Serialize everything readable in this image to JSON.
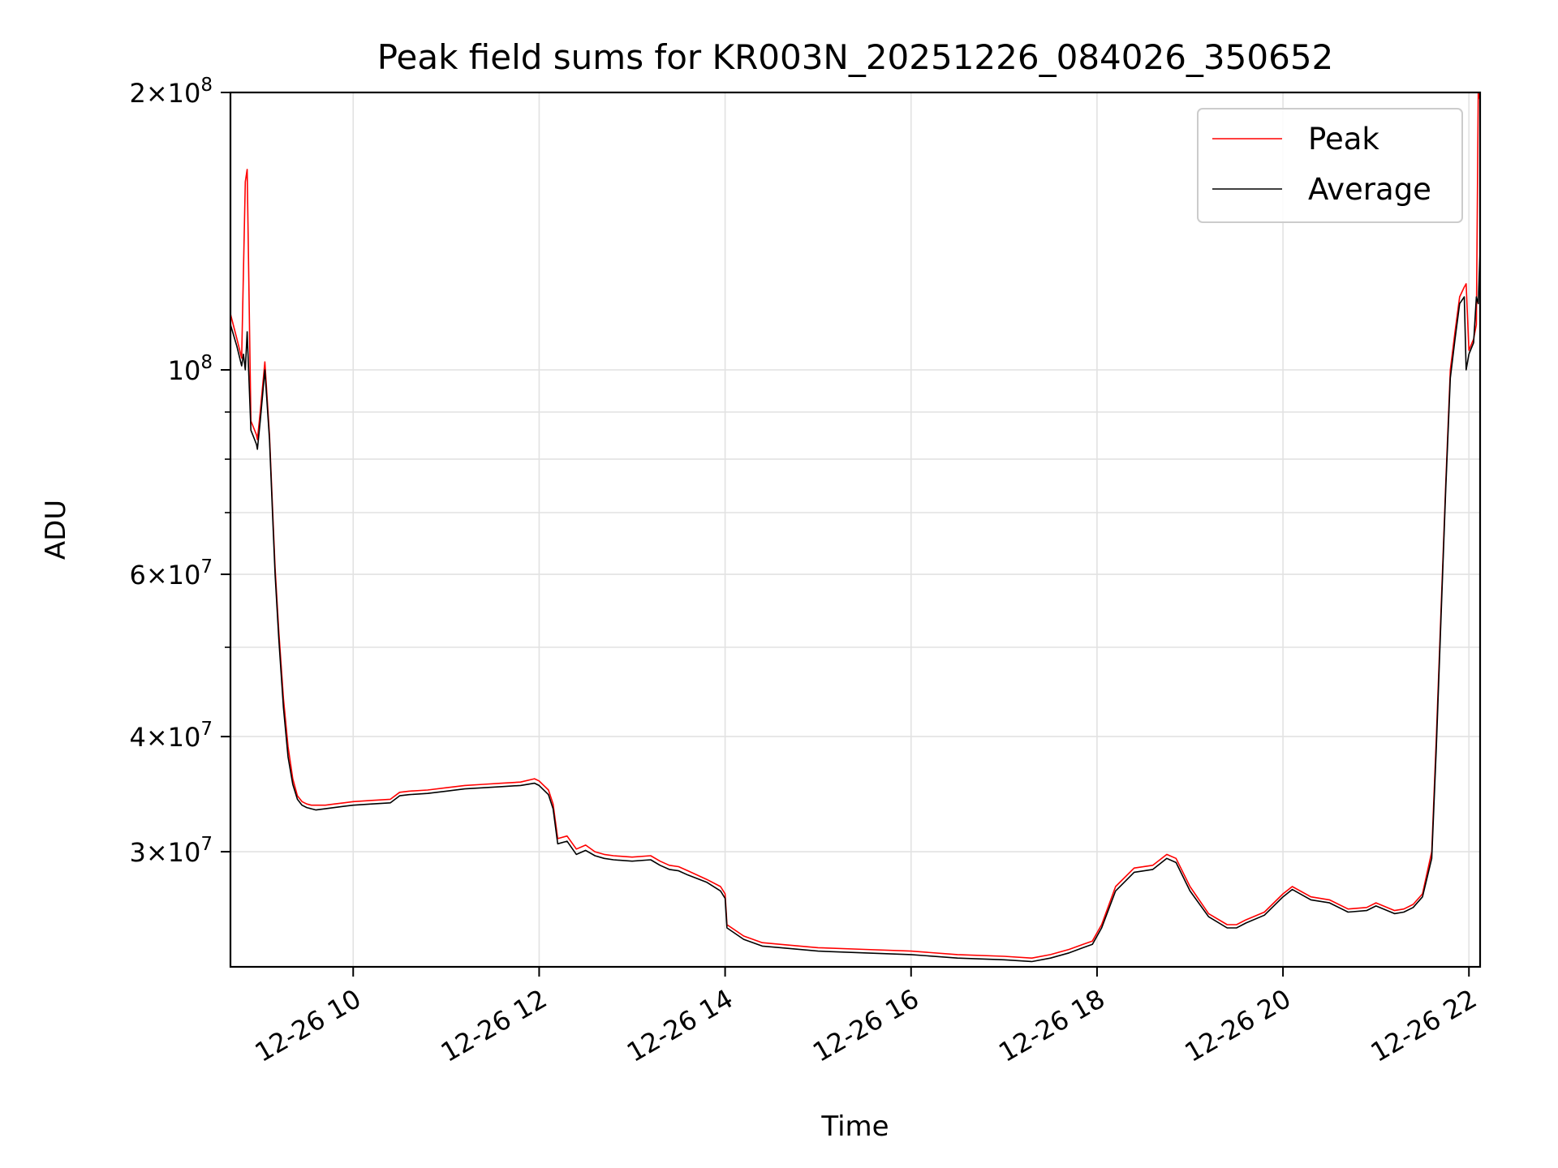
{
  "chart_data": {
    "type": "line",
    "title": "Peak field sums for KR003N_20251226_084026_350652",
    "xlabel": "Time",
    "ylabel": "ADU",
    "yscale": "log",
    "xlim": [
      8.68,
      22.12
    ],
    "ylim": [
      22500000,
      200000000
    ],
    "x_unit": "hours of 2025-12-26",
    "x_ticks": [
      {
        "value": 10,
        "label": "12-26 10"
      },
      {
        "value": 12,
        "label": "12-26 12"
      },
      {
        "value": 14,
        "label": "12-26 14"
      },
      {
        "value": 16,
        "label": "12-26 16"
      },
      {
        "value": 18,
        "label": "12-26 18"
      },
      {
        "value": 20,
        "label": "12-26 20"
      },
      {
        "value": 22,
        "label": "12-26 22"
      }
    ],
    "y_major_ticks": [
      {
        "value": 30000000,
        "base": "3",
        "exp": "7"
      },
      {
        "value": 40000000,
        "base": "4",
        "exp": "7"
      },
      {
        "value": 60000000,
        "base": "6",
        "exp": "7"
      },
      {
        "value": 100000000,
        "base": "",
        "exp": "8"
      },
      {
        "value": 200000000,
        "base": "2",
        "exp": "8"
      }
    ],
    "y_minor_ticks": [
      50000000,
      70000000,
      80000000,
      90000000
    ],
    "grid": true,
    "legend_position": "top-right",
    "series": [
      {
        "name": "Peak",
        "color": "#ff0000",
        "x": [
          8.68,
          8.75,
          8.8,
          8.84,
          8.86,
          8.9,
          8.92,
          8.94,
          8.96,
          8.97,
          9.0,
          9.05,
          9.1,
          9.12,
          9.14,
          9.16,
          9.2,
          9.25,
          9.3,
          9.35,
          9.4,
          9.45,
          9.5,
          9.55,
          9.6,
          9.7,
          9.8,
          9.9,
          10.0,
          10.2,
          10.4,
          10.5,
          10.6,
          10.8,
          11.0,
          11.2,
          11.4,
          11.6,
          11.8,
          11.95,
          12.0,
          12.1,
          12.15,
          12.2,
          12.3,
          12.4,
          12.5,
          12.6,
          12.7,
          12.8,
          13.0,
          13.2,
          13.3,
          13.4,
          13.5,
          13.6,
          13.8,
          13.95,
          14.0,
          14.02,
          14.2,
          14.4,
          14.6,
          15.0,
          15.5,
          16.0,
          16.5,
          17.0,
          17.3,
          17.5,
          17.7,
          17.85,
          17.95,
          18.05,
          18.2,
          18.4,
          18.6,
          18.75,
          18.85,
          19.0,
          19.2,
          19.4,
          19.5,
          19.6,
          19.8,
          20.0,
          20.1,
          20.3,
          20.5,
          20.7,
          20.9,
          21.0,
          21.2,
          21.3,
          21.4,
          21.5,
          21.6,
          21.65,
          21.7,
          21.75,
          21.8,
          21.85,
          21.9,
          21.95,
          21.97,
          22.0,
          22.05,
          22.08,
          22.1,
          22.12
        ],
        "values": [
          115000000,
          108000000,
          103000000,
          160000000,
          165000000,
          88000000,
          87000000,
          86000000,
          85000000,
          84000000,
          90000000,
          102000000,
          85000000,
          76000000,
          68000000,
          61000000,
          52000000,
          44000000,
          39000000,
          36000000,
          34500000,
          34000000,
          33800000,
          33700000,
          33700000,
          33700000,
          33800000,
          33900000,
          34000000,
          34100000,
          34200000,
          34800000,
          34900000,
          35000000,
          35200000,
          35400000,
          35500000,
          35600000,
          35700000,
          36000000,
          35800000,
          35000000,
          33800000,
          31000000,
          31200000,
          30200000,
          30500000,
          30000000,
          29800000,
          29700000,
          29600000,
          29700000,
          29300000,
          29000000,
          28900000,
          28600000,
          28000000,
          27500000,
          27000000,
          25000000,
          24300000,
          23900000,
          23800000,
          23600000,
          23500000,
          23400000,
          23200000,
          23100000,
          23000000,
          23200000,
          23500000,
          23800000,
          24000000,
          25000000,
          27500000,
          28800000,
          29000000,
          29800000,
          29500000,
          27500000,
          25700000,
          25000000,
          25000000,
          25300000,
          25800000,
          27000000,
          27500000,
          26800000,
          26600000,
          26000000,
          26100000,
          26400000,
          25900000,
          26000000,
          26300000,
          27000000,
          30000000,
          40000000,
          55000000,
          75000000,
          100000000,
          110000000,
          120000000,
          123000000,
          124000000,
          105000000,
          108000000,
          112000000,
          200000000,
          196000000
        ]
      },
      {
        "name": "Average",
        "color": "#000000",
        "x": [
          8.68,
          8.75,
          8.8,
          8.82,
          8.84,
          8.86,
          8.9,
          8.92,
          8.94,
          8.96,
          8.97,
          9.0,
          9.05,
          9.1,
          9.12,
          9.14,
          9.16,
          9.2,
          9.25,
          9.3,
          9.35,
          9.4,
          9.45,
          9.5,
          9.55,
          9.6,
          9.7,
          9.8,
          9.9,
          10.0,
          10.2,
          10.4,
          10.5,
          10.6,
          10.8,
          11.0,
          11.2,
          11.4,
          11.6,
          11.8,
          11.95,
          12.0,
          12.1,
          12.15,
          12.2,
          12.3,
          12.4,
          12.5,
          12.6,
          12.7,
          12.8,
          13.0,
          13.2,
          13.3,
          13.4,
          13.5,
          13.6,
          13.8,
          13.95,
          14.0,
          14.02,
          14.2,
          14.4,
          14.6,
          15.0,
          15.5,
          16.0,
          16.5,
          17.0,
          17.3,
          17.5,
          17.7,
          17.85,
          17.95,
          18.05,
          18.2,
          18.4,
          18.6,
          18.75,
          18.85,
          19.0,
          19.2,
          19.4,
          19.5,
          19.6,
          19.8,
          20.0,
          20.1,
          20.3,
          20.5,
          20.7,
          20.9,
          21.0,
          21.2,
          21.3,
          21.4,
          21.5,
          21.6,
          21.65,
          21.7,
          21.75,
          21.8,
          21.85,
          21.9,
          21.95,
          21.97,
          22.0,
          22.05,
          22.08,
          22.1,
          22.12
        ],
        "values": [
          112000000,
          106000000,
          101000000,
          104000000,
          100000000,
          110000000,
          86000000,
          85000000,
          84000000,
          83000000,
          82000000,
          88000000,
          100000000,
          84000000,
          75000000,
          67000000,
          60000000,
          51000000,
          43000000,
          38000000,
          35500000,
          34200000,
          33700000,
          33500000,
          33400000,
          33300000,
          33400000,
          33500000,
          33600000,
          33700000,
          33800000,
          33900000,
          34500000,
          34600000,
          34700000,
          34900000,
          35100000,
          35200000,
          35300000,
          35400000,
          35600000,
          35400000,
          34600000,
          33400000,
          30600000,
          30800000,
          29800000,
          30100000,
          29700000,
          29500000,
          29400000,
          29300000,
          29400000,
          29000000,
          28700000,
          28600000,
          28300000,
          27800000,
          27200000,
          26700000,
          24800000,
          24100000,
          23700000,
          23600000,
          23400000,
          23300000,
          23200000,
          23000000,
          22900000,
          22800000,
          23000000,
          23300000,
          23600000,
          23800000,
          24800000,
          27200000,
          28500000,
          28700000,
          29500000,
          29200000,
          27200000,
          25500000,
          24800000,
          24800000,
          25100000,
          25600000,
          26800000,
          27300000,
          26600000,
          26400000,
          25800000,
          25900000,
          26200000,
          25700000,
          25800000,
          26100000,
          26800000,
          29500000,
          39000000,
          54000000,
          74000000,
          98000000,
          108000000,
          118000000,
          120000000,
          100000000,
          104000000,
          107000000,
          120000000,
          118000000,
          135000000
        ]
      }
    ]
  }
}
